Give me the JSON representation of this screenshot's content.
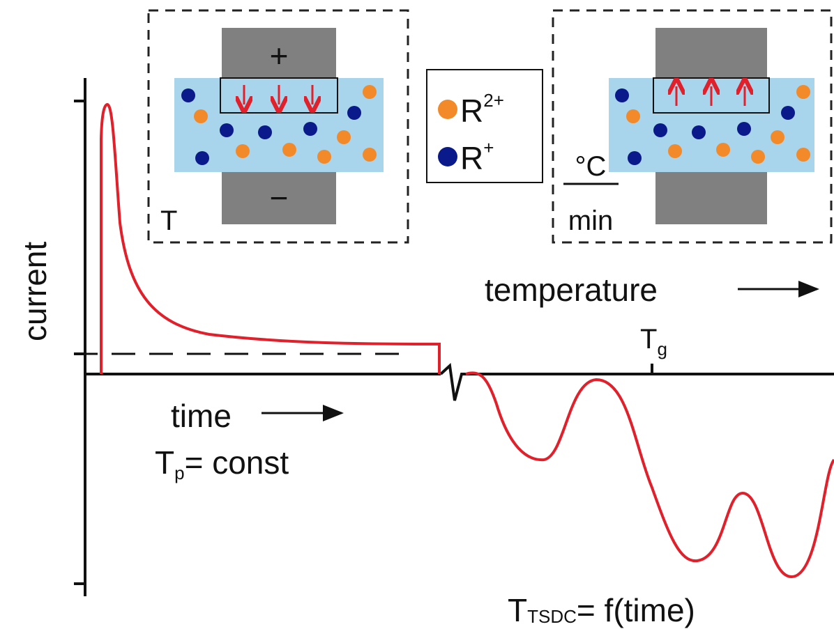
{
  "axes": {
    "y_label": "current",
    "x_label_left": "time",
    "x_label_right": "temperature"
  },
  "annotations": {
    "polarization": {
      "symbol": "T",
      "subscript": "p",
      "rest": "= const"
    },
    "glass": {
      "symbol": "T",
      "subscript": "g"
    },
    "depolarization": {
      "symbol": "T",
      "subscript": "TSDC",
      "rest": "= f(time)"
    }
  },
  "left_panel": {
    "top_electrode": "+",
    "bottom_electrode": "−",
    "temperature": "T"
  },
  "right_panel": {
    "rate_numerator": "°C",
    "rate_denominator": "min"
  },
  "legend": [
    {
      "label": "R",
      "charge": "2+"
    },
    {
      "label": "R",
      "charge": "+"
    }
  ]
}
